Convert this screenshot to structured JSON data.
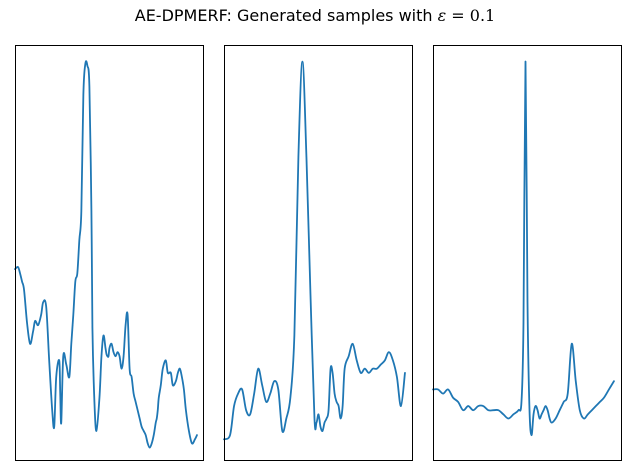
{
  "figure": {
    "title_prefix": "AE-DPMERF: Generated samples with ",
    "title_symbol": "ε",
    "title_suffix": " = 0.1"
  },
  "chart_data": [
    {
      "type": "line",
      "title": "",
      "xlabel": "",
      "ylabel": "",
      "xlim": [
        0,
        187
      ],
      "ylim": [
        0,
        1
      ],
      "grid": false,
      "axis_ticks": false,
      "color": "#1f77b4",
      "series": [
        {
          "x": [
            0,
            3,
            5,
            7,
            9,
            12,
            15,
            18,
            20,
            23,
            26,
            28,
            31,
            34,
            37,
            39,
            41,
            44,
            45,
            46,
            48,
            51,
            54,
            56,
            58,
            60,
            62,
            64,
            66,
            68,
            70,
            72,
            74,
            76,
            77,
            79,
            81,
            84,
            86,
            88,
            90,
            91,
            92,
            93,
            94,
            96,
            98,
            100,
            102,
            104,
            106,
            108,
            110,
            112,
            114,
            116,
            118,
            120,
            122,
            124,
            126,
            128,
            130,
            132,
            134,
            136,
            138,
            140,
            141,
            142,
            143,
            145,
            147,
            150,
            152,
            155,
            157,
            160,
            162,
            164,
            166,
            168,
            170,
            173,
            176,
            179,
            181
          ],
          "y": [
            0.46,
            0.465,
            0.45,
            0.43,
            0.41,
            0.33,
            0.28,
            0.31,
            0.335,
            0.325,
            0.35,
            0.38,
            0.37,
            0.24,
            0.12,
            0.08,
            0.2,
            0.24,
            0.16,
            0.09,
            0.25,
            0.23,
            0.2,
            0.28,
            0.35,
            0.43,
            0.45,
            0.53,
            0.6,
            0.88,
            0.955,
            0.95,
            0.9,
            0.6,
            0.32,
            0.14,
            0.07,
            0.15,
            0.25,
            0.3,
            0.27,
            0.255,
            0.25,
            0.25,
            0.27,
            0.28,
            0.26,
            0.25,
            0.26,
            0.25,
            0.22,
            0.25,
            0.325,
            0.35,
            0.22,
            0.2,
            0.16,
            0.14,
            0.12,
            0.1,
            0.08,
            0.07,
            0.06,
            0.04,
            0.03,
            0.04,
            0.06,
            0.09,
            0.1,
            0.12,
            0.15,
            0.18,
            0.22,
            0.24,
            0.21,
            0.21,
            0.18,
            0.19,
            0.21,
            0.22,
            0.2,
            0.17,
            0.12,
            0.07,
            0.04,
            0.05,
            0.06
          ]
        }
      ]
    },
    {
      "type": "line",
      "title": "",
      "xlabel": "",
      "ylabel": "",
      "xlim": [
        0,
        187
      ],
      "ylim": [
        0,
        1
      ],
      "grid": false,
      "axis_ticks": false,
      "color": "#1f77b4",
      "series": [
        {
          "x": [
            0,
            6,
            10,
            14,
            18,
            22,
            26,
            30,
            34,
            38,
            42,
            46,
            50,
            54,
            58,
            62,
            66,
            70,
            74,
            78,
            82,
            86,
            90,
            92,
            94,
            96,
            98,
            100,
            102,
            104,
            106,
            108,
            110,
            112,
            114,
            116,
            118,
            120,
            124,
            128,
            132,
            136,
            140,
            144,
            148,
            152,
            156,
            160,
            164,
            168,
            172,
            176,
            180
          ],
          "y": [
            0.05,
            0.06,
            0.13,
            0.16,
            0.17,
            0.12,
            0.11,
            0.16,
            0.22,
            0.18,
            0.14,
            0.16,
            0.19,
            0.17,
            0.07,
            0.1,
            0.15,
            0.3,
            0.73,
            0.96,
            0.73,
            0.4,
            0.1,
            0.09,
            0.11,
            0.08,
            0.07,
            0.09,
            0.1,
            0.12,
            0.22,
            0.21,
            0.16,
            0.14,
            0.13,
            0.1,
            0.13,
            0.22,
            0.25,
            0.28,
            0.24,
            0.21,
            0.22,
            0.21,
            0.22,
            0.22,
            0.23,
            0.24,
            0.26,
            0.24,
            0.2,
            0.13,
            0.21
          ]
        }
      ]
    },
    {
      "type": "line",
      "title": "",
      "xlabel": "",
      "ylabel": "",
      "xlim": [
        0,
        187
      ],
      "ylim": [
        0,
        1
      ],
      "grid": false,
      "axis_ticks": false,
      "color": "#1f77b4",
      "series": [
        {
          "x": [
            0,
            5,
            10,
            15,
            20,
            25,
            30,
            35,
            40,
            45,
            50,
            55,
            60,
            65,
            70,
            75,
            80,
            85,
            88,
            90,
            92,
            94,
            96,
            98,
            100,
            102,
            104,
            106,
            108,
            110,
            112,
            114,
            116,
            118,
            122,
            126,
            130,
            134,
            138,
            142,
            146,
            150,
            154,
            158,
            162,
            166,
            170,
            175,
            180
          ],
          "y": [
            0.17,
            0.17,
            0.16,
            0.17,
            0.15,
            0.14,
            0.12,
            0.13,
            0.12,
            0.13,
            0.13,
            0.12,
            0.12,
            0.12,
            0.11,
            0.1,
            0.11,
            0.12,
            0.14,
            0.33,
            0.96,
            0.38,
            0.12,
            0.06,
            0.11,
            0.13,
            0.12,
            0.1,
            0.11,
            0.12,
            0.13,
            0.12,
            0.1,
            0.09,
            0.1,
            0.12,
            0.14,
            0.16,
            0.28,
            0.19,
            0.12,
            0.1,
            0.11,
            0.12,
            0.13,
            0.14,
            0.15,
            0.17,
            0.19
          ]
        }
      ]
    }
  ]
}
